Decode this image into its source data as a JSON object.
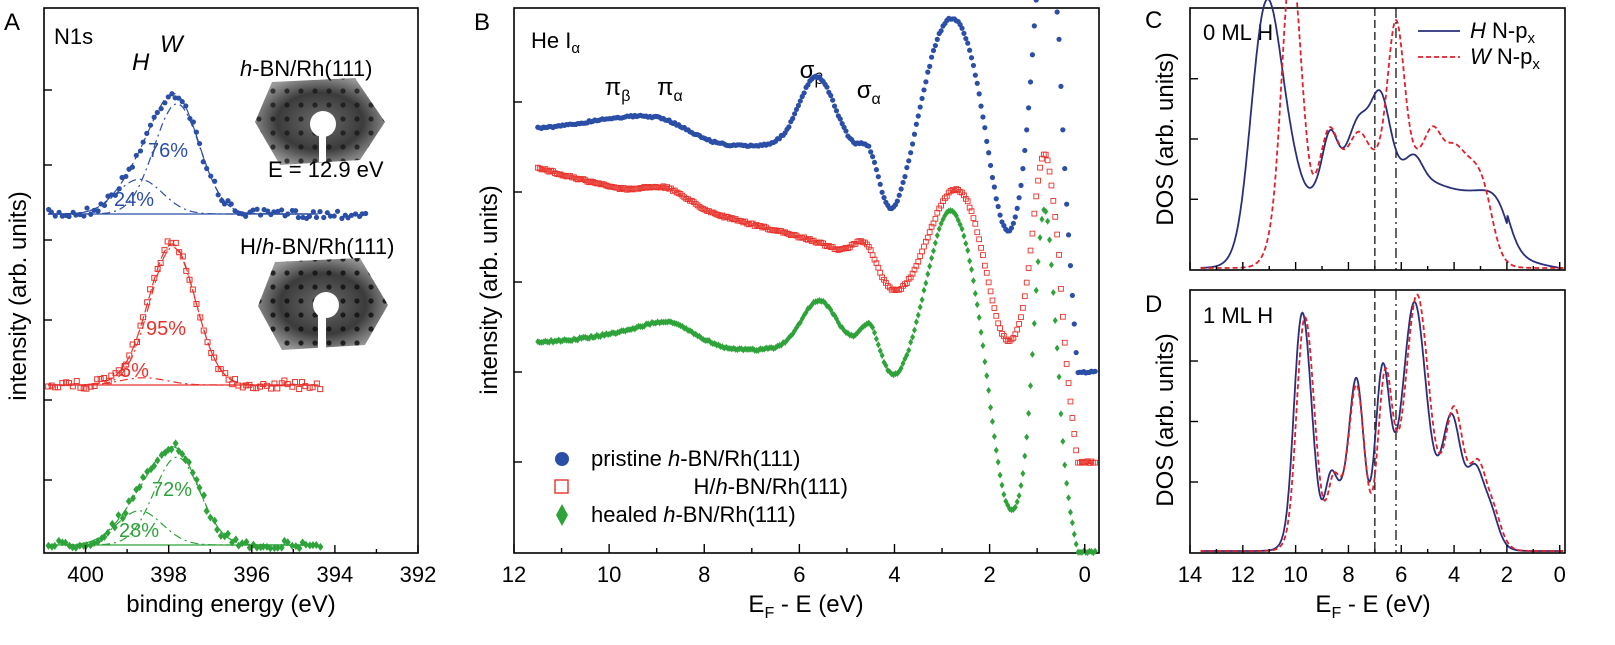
{
  "colors": {
    "blue": "#2b4ea6",
    "red": "#e8332c",
    "green": "#2ea33a",
    "navy": "#2a2f7a",
    "dashred": "#e0202a"
  },
  "chart_data": [
    {
      "id": "A",
      "type": "scatter",
      "panel_label": "A",
      "title": "N1s",
      "xlabel": "binding energy (eV)",
      "ylabel": "intensity (arb. units)",
      "xlim": [
        401,
        392
      ],
      "xticks": [
        "400",
        "398",
        "396",
        "394",
        "392"
      ],
      "peak_labels": {
        "H": "H",
        "W": "W"
      },
      "inset_top": {
        "title": "h-BN/Rh(111)",
        "prefix": "h",
        "rest": "-BN/Rh(111)",
        "energy": "E = 12.9 eV"
      },
      "inset_bottom": {
        "title": "H/h-BN/Rh(111)",
        "pre": "H/",
        "prefix": "h",
        "rest": "-BN/Rh(111)"
      },
      "series": [
        {
          "color": "blue",
          "peak_center": 397.9,
          "components": [
            {
              "label": "76%",
              "center": 397.8,
              "fraction": 0.76
            },
            {
              "label": "24%",
              "center": 398.7,
              "fraction": 0.24
            }
          ]
        },
        {
          "color": "red",
          "peak_center": 397.9,
          "components": [
            {
              "label": "95%",
              "center": 397.9,
              "fraction": 0.95
            },
            {
              "label": "5%",
              "center": 398.6,
              "fraction": 0.05
            }
          ]
        },
        {
          "color": "green",
          "peak_center": 397.9,
          "components": [
            {
              "label": "72%",
              "center": 397.8,
              "fraction": 0.72
            },
            {
              "label": "28%",
              "center": 398.7,
              "fraction": 0.28
            }
          ]
        }
      ]
    },
    {
      "id": "B",
      "type": "scatter",
      "panel_label": "B",
      "title": "He I",
      "title_sub": "α",
      "xlabel": "E",
      "xlabel_sub": "F",
      "xlabel_rest": " - E (eV)",
      "ylabel": "intensity (arb. units)",
      "xlim": [
        12,
        -0.3
      ],
      "xticks": [
        "12",
        "10",
        "8",
        "6",
        "4",
        "2",
        "0"
      ],
      "peak_annotations": [
        {
          "base": "π",
          "sub": "β",
          "x": 9.8
        },
        {
          "base": "π",
          "sub": "α",
          "x": 8.7
        },
        {
          "base": "σ",
          "sub": "β",
          "x": 5.7
        },
        {
          "base": "σ",
          "sub": "α",
          "x": 4.5
        }
      ],
      "series": [
        {
          "name": "pristine h-BN/Rh(111)",
          "name_pre": "pristine ",
          "name_it": "h",
          "name_post": "-BN/Rh(111)",
          "color": "blue",
          "marker": "circle",
          "peaks_eV": [
            9.8,
            8.8,
            5.7,
            4.5,
            2.8,
            0.85
          ]
        },
        {
          "name": "H/h-BN/Rh(111)",
          "name_pre": "H/",
          "name_it": "h",
          "name_post": "-BN/Rh(111)",
          "color": "red",
          "marker": "square-open",
          "peaks_eV": [
            8.8,
            4.6,
            2.7,
            0.85
          ]
        },
        {
          "name": "healed h-BN/Rh(111)",
          "name_pre": "healed ",
          "name_it": "h",
          "name_post": "-BN/Rh(111)",
          "color": "green",
          "marker": "diamond",
          "peaks_eV": [
            9.7,
            8.7,
            5.6,
            4.5,
            2.7,
            0.85
          ]
        }
      ]
    },
    {
      "id": "C",
      "type": "line",
      "panel_label": "C",
      "title": "0 ML H",
      "ylabel": "DOS (arb. units)",
      "xlim": [
        14,
        -0.2
      ],
      "dashed_lines_eV": [
        7.0,
        6.2
      ],
      "legend": [
        {
          "italic": "H",
          "label": " N-p",
          "sub": "x",
          "color": "navy",
          "style": "solid"
        },
        {
          "italic": "W",
          "label": " N-p",
          "sub": "x",
          "color": "dashred",
          "style": "dashed"
        }
      ],
      "series": [
        {
          "name": "H N-px",
          "color": "navy",
          "peaks_eV": [
            11.2,
            8.7,
            7.6,
            6.8,
            5.5
          ]
        },
        {
          "name": "W N-px",
          "color": "dashred",
          "peaks_eV": [
            10.2,
            9.5,
            6.1,
            4.8,
            4.0
          ]
        }
      ]
    },
    {
      "id": "D",
      "type": "line",
      "panel_label": "D",
      "title": "1 ML H",
      "xlabel": "E",
      "xlabel_sub": "F",
      "xlabel_rest": " - E (eV)",
      "ylabel": "DOS (arb. units)",
      "xlim": [
        14,
        -0.2
      ],
      "xticks": [
        "14",
        "12",
        "10",
        "8",
        "6",
        "4",
        "2",
        "0"
      ],
      "dashed_lines_eV": [
        7.0,
        6.2
      ],
      "series": [
        {
          "name": "H N-px",
          "color": "navy",
          "peaks_eV": [
            9.8,
            8.7,
            7.7,
            6.7,
            5.5,
            4.1,
            3.2
          ]
        },
        {
          "name": "W N-px",
          "color": "dashred",
          "peaks_eV": [
            9.7,
            8.6,
            7.7,
            6.6,
            5.4,
            4.0,
            3.1
          ]
        }
      ]
    }
  ]
}
